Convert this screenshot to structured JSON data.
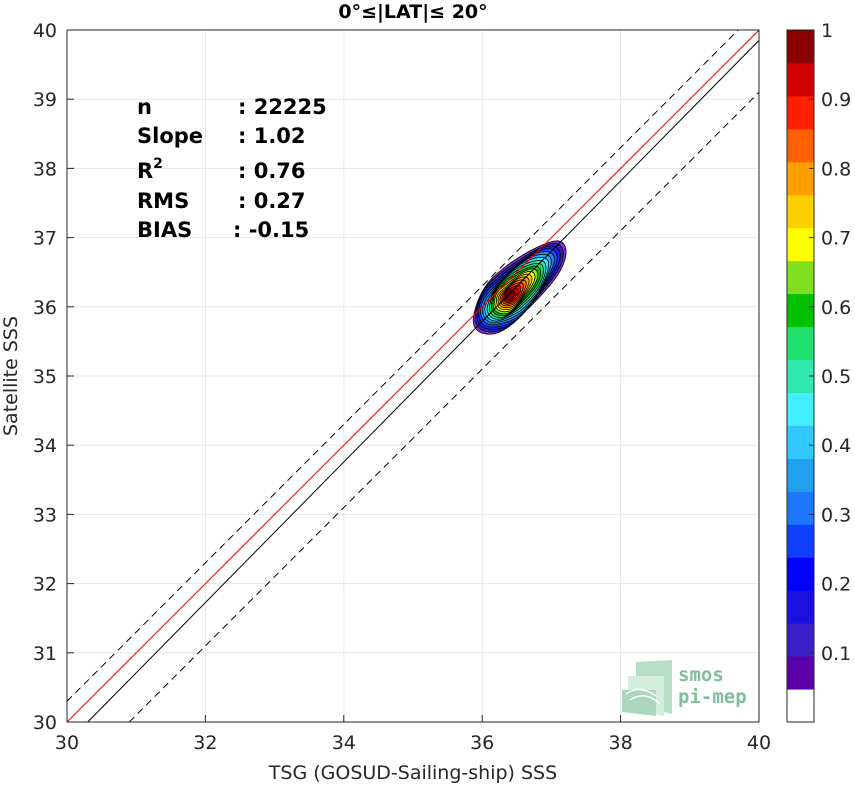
{
  "chart_data": {
    "type": "contour",
    "title": "0°≤|LAT|≤ 20°",
    "xlabel": "TSG (GOSUD-Sailing-ship) SSS",
    "ylabel": "Satellite SSS",
    "xlim": [
      30,
      40
    ],
    "ylim": [
      30,
      40
    ],
    "xticks": [
      30,
      32,
      34,
      36,
      38,
      40
    ],
    "yticks": [
      30,
      31,
      32,
      33,
      34,
      35,
      36,
      37,
      38,
      39,
      40
    ],
    "grid": true,
    "stats": [
      {
        "label": "n",
        "value": ": 22225"
      },
      {
        "label": "Slope",
        "value": ": 1.02"
      },
      {
        "label": "R",
        "sup": "2",
        "value": ": 0.76"
      },
      {
        "label": "RMS",
        "value": ": 0.27"
      },
      {
        "label": "BIAS",
        "value": ": -0.15"
      }
    ],
    "lines": [
      {
        "name": "one-to-one",
        "color": "#d01010",
        "style": "solid",
        "points": [
          [
            30,
            30
          ],
          [
            40,
            40
          ]
        ]
      },
      {
        "name": "regression",
        "color": "#000000",
        "style": "solid",
        "points": [
          [
            30.3,
            30
          ],
          [
            40,
            39.85
          ]
        ]
      },
      {
        "name": "upper-bound",
        "color": "#000000",
        "style": "dashed",
        "points": [
          [
            30,
            30.3
          ],
          [
            40,
            40.3
          ]
        ]
      },
      {
        "name": "lower-bound",
        "color": "#000000",
        "style": "dashed",
        "points": [
          [
            30.9,
            30
          ],
          [
            40,
            39.1
          ]
        ]
      }
    ],
    "density_peak": {
      "x": 36.4,
      "y": 36.15
    },
    "density_level_colors": [
      "#8a2be2",
      "#2a2ab0",
      "#1b1bff",
      "#0f4bff",
      "#2a86e6",
      "#20b0ff",
      "#30e8ff",
      "#30e0b0",
      "#20e060",
      "#00c000",
      "#90e020",
      "#ffff00",
      "#ffd000",
      "#ffa000",
      "#ff7000",
      "#ff4000",
      "#ff0000",
      "#cc0000",
      "#8b0000"
    ],
    "colorbar": {
      "min": 0,
      "max": 1,
      "levels": 20,
      "ticks": [
        "0.1",
        "0.2",
        "0.3",
        "0.4",
        "0.5",
        "0.6",
        "0.7",
        "0.8",
        "0.9",
        "1"
      ],
      "colors": [
        "#ffffff",
        "#5a00a8",
        "#3a20c8",
        "#1a10e0",
        "#0000ff",
        "#1040ff",
        "#1e78ff",
        "#20a0f0",
        "#30c8ff",
        "#40f0ff",
        "#30e8b0",
        "#20e070",
        "#00c000",
        "#80e020",
        "#ffff00",
        "#ffd000",
        "#ffa000",
        "#ff6000",
        "#ff2000",
        "#d00000",
        "#8b0000"
      ]
    },
    "logo_text": [
      "smos",
      "pi-mep"
    ]
  }
}
